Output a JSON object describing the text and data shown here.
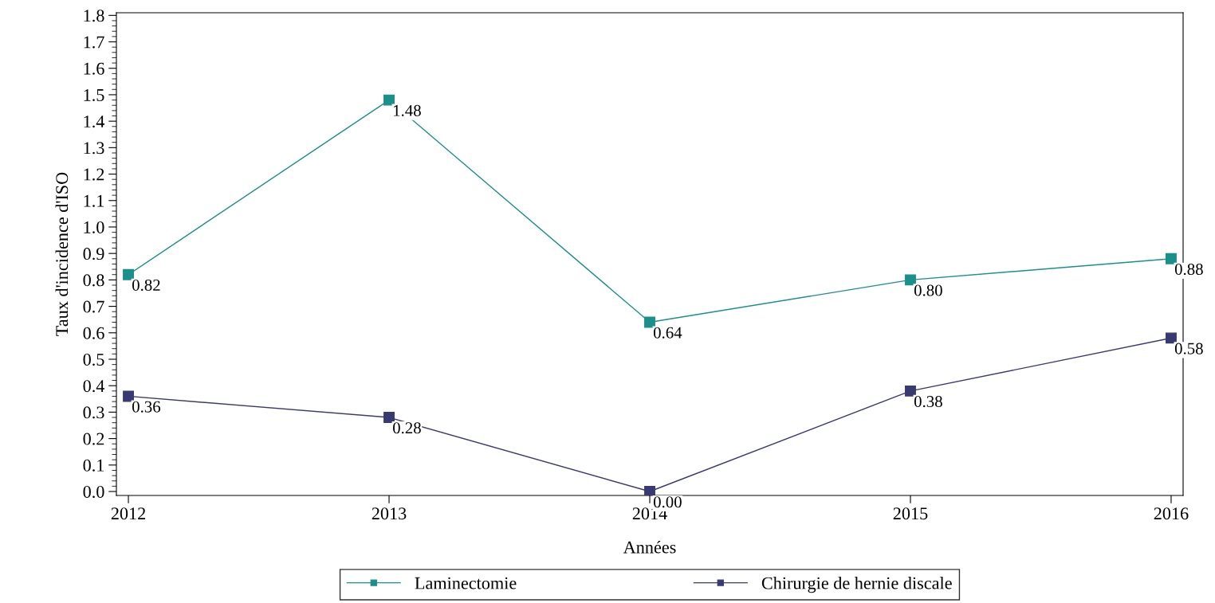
{
  "chart_data": {
    "type": "line",
    "xlabel": "Années",
    "ylabel": "Taux d'incidence d'ISO",
    "categories": [
      "2012",
      "2013",
      "2014",
      "2015",
      "2016"
    ],
    "series": [
      {
        "name": "Laminectomie",
        "color": "#1b8f8a",
        "values": [
          0.82,
          1.48,
          0.64,
          0.8,
          0.88
        ],
        "value_labels": [
          "0.82",
          "1.48",
          "0.64",
          "0.80",
          "0.88"
        ]
      },
      {
        "name": "Chirurgie de hernie discale",
        "color": "#3a3a73",
        "values": [
          0.36,
          0.28,
          0.0,
          0.38,
          0.58
        ],
        "value_labels": [
          "0.36",
          "0.28",
          "0.00",
          "0.38",
          "0.58"
        ]
      }
    ],
    "ylim": [
      -0.015,
      1.81
    ],
    "yticks": [
      {
        "value": 0,
        "label": "0.0"
      },
      0.1,
      0.2,
      0.3,
      0.4,
      0.5,
      0.6,
      0.7,
      0.8,
      0.9,
      {
        "value": 1,
        "label": "1.0"
      },
      1.1,
      1.2,
      1.3,
      1.4,
      1.5,
      1.6,
      1.7,
      1.8
    ],
    "marker": "square",
    "line_style": "solid",
    "grid": false,
    "legend": "bottom"
  }
}
